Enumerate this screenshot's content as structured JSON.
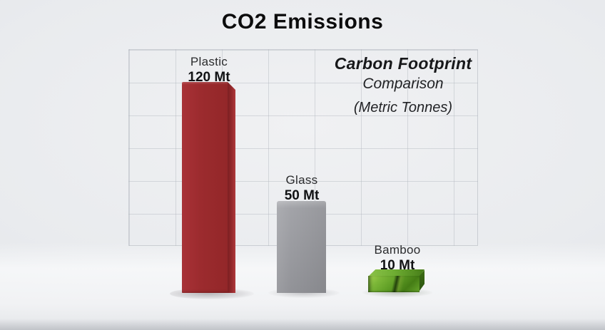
{
  "title": "CO2 Emissions",
  "annotation": {
    "line1": "Carbon Footprint",
    "line2": "Comparison",
    "line3": "(Metric Tonnes)"
  },
  "bars": [
    {
      "label": "Plastic",
      "value": 120,
      "value_label": "120 Mt",
      "color": "#9c2b2e"
    },
    {
      "label": "Glass",
      "value": 50,
      "value_label": "50 Mt",
      "color": "#9b9ca1"
    },
    {
      "label": "Bamboo",
      "value": 10,
      "value_label": "10 Mt",
      "color": "#5d9c24"
    }
  ],
  "chart_data": {
    "type": "bar",
    "title": "CO2 Emissions",
    "subtitle": "Carbon Footprint Comparison (Metric Tonnes)",
    "categories": [
      "Plastic",
      "Glass",
      "Bamboo"
    ],
    "values": [
      120,
      50,
      10
    ],
    "unit": "Mt",
    "value_labels": [
      "120 Mt",
      "50 Mt",
      "10 Mt"
    ],
    "series_colors": [
      "#9c2b2e",
      "#9b9ca1",
      "#5d9c24"
    ],
    "ylim": [
      0,
      120
    ],
    "grid": true,
    "legend": false,
    "style": "3d-bars-on-gridded-backdrop",
    "background_color": "#e9ebee",
    "grid_line_color": "#c8ccd2"
  }
}
